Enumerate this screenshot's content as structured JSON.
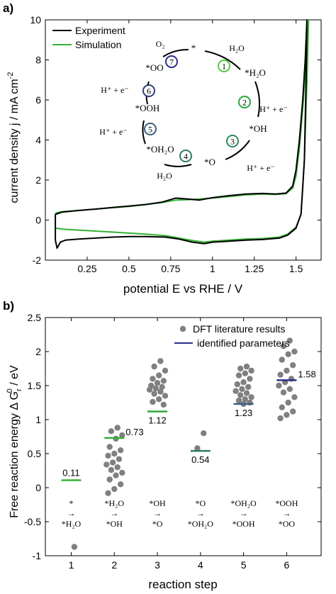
{
  "chart_data": [
    {
      "panel_label": "a)",
      "type": "line",
      "xlabel": "potential E vs RHE / V",
      "ylabel": "current density j / mA cm",
      "ylabel_sup": "-2",
      "xlim": [
        0,
        1.65
      ],
      "ylim": [
        -2,
        10
      ],
      "xticks": [
        "0.25",
        "0.5",
        "0.75",
        "1",
        "1.25",
        "1.5"
      ],
      "xtick_values": [
        0.25,
        0.5,
        0.75,
        1,
        1.25,
        1.5
      ],
      "yticks": [
        "-2",
        "0",
        "2",
        "4",
        "6",
        "8",
        "10"
      ],
      "ytick_values": [
        -2,
        0,
        2,
        4,
        6,
        8,
        10
      ],
      "grid": false,
      "legend": "top-left",
      "series": [
        {
          "name": "Experiment",
          "color": "#000000",
          "anodic": [
            [
              0.06,
              -1.0
            ],
            [
              0.06,
              0.28
            ],
            [
              0.1,
              0.4
            ],
            [
              0.2,
              0.48
            ],
            [
              0.3,
              0.55
            ],
            [
              0.4,
              0.63
            ],
            [
              0.5,
              0.7
            ],
            [
              0.6,
              0.78
            ],
            [
              0.7,
              0.9
            ],
            [
              0.78,
              1.1
            ],
            [
              0.85,
              1.05
            ],
            [
              0.92,
              1.0
            ],
            [
              1.0,
              1.12
            ],
            [
              1.1,
              1.22
            ],
            [
              1.2,
              1.3
            ],
            [
              1.3,
              1.33
            ],
            [
              1.38,
              1.3
            ],
            [
              1.44,
              1.35
            ],
            [
              1.48,
              1.7
            ],
            [
              1.5,
              2.5
            ],
            [
              1.52,
              4.0
            ],
            [
              1.54,
              6.0
            ],
            [
              1.555,
              8.0
            ],
            [
              1.565,
              10.0
            ]
          ],
          "cathodic": [
            [
              1.565,
              10.0
            ],
            [
              1.56,
              7.0
            ],
            [
              1.55,
              3.0
            ],
            [
              1.53,
              0.3
            ],
            [
              1.5,
              -0.4
            ],
            [
              1.45,
              -0.75
            ],
            [
              1.4,
              -0.9
            ],
            [
              1.3,
              -0.97
            ],
            [
              1.2,
              -1.0
            ],
            [
              1.1,
              -1.05
            ],
            [
              1.0,
              -1.1
            ],
            [
              0.95,
              -1.18
            ],
            [
              0.88,
              -1.1
            ],
            [
              0.8,
              -0.95
            ],
            [
              0.72,
              -0.85
            ],
            [
              0.6,
              -0.82
            ],
            [
              0.5,
              -0.82
            ],
            [
              0.4,
              -0.85
            ],
            [
              0.3,
              -0.9
            ],
            [
              0.2,
              -0.95
            ],
            [
              0.12,
              -1.0
            ],
            [
              0.09,
              -1.1
            ],
            [
              0.07,
              -1.4
            ],
            [
              0.06,
              -1.0
            ]
          ]
        },
        {
          "name": "Simulation",
          "color": "#33b233",
          "anodic": [
            [
              0.06,
              0.35
            ],
            [
              0.1,
              0.42
            ],
            [
              0.2,
              0.48
            ],
            [
              0.3,
              0.55
            ],
            [
              0.4,
              0.62
            ],
            [
              0.5,
              0.68
            ],
            [
              0.6,
              0.78
            ],
            [
              0.7,
              0.88
            ],
            [
              0.78,
              1.0
            ],
            [
              0.85,
              1.02
            ],
            [
              0.92,
              1.05
            ],
            [
              1.0,
              1.1
            ],
            [
              1.1,
              1.18
            ],
            [
              1.2,
              1.26
            ],
            [
              1.3,
              1.3
            ],
            [
              1.38,
              1.28
            ],
            [
              1.44,
              1.32
            ],
            [
              1.48,
              1.6
            ],
            [
              1.5,
              2.2
            ],
            [
              1.52,
              3.6
            ],
            [
              1.54,
              5.6
            ],
            [
              1.56,
              8.0
            ],
            [
              1.575,
              10.0
            ]
          ],
          "cathodic": [
            [
              1.575,
              10.0
            ],
            [
              1.565,
              7.0
            ],
            [
              1.55,
              3.0
            ],
            [
              1.53,
              0.3
            ],
            [
              1.5,
              -0.35
            ],
            [
              1.45,
              -0.7
            ],
            [
              1.4,
              -0.85
            ],
            [
              1.3,
              -0.92
            ],
            [
              1.2,
              -0.95
            ],
            [
              1.1,
              -1.0
            ],
            [
              1.0,
              -1.05
            ],
            [
              0.95,
              -1.1
            ],
            [
              0.88,
              -1.02
            ],
            [
              0.8,
              -0.9
            ],
            [
              0.72,
              -0.78
            ],
            [
              0.6,
              -0.7
            ],
            [
              0.5,
              -0.65
            ],
            [
              0.4,
              -0.6
            ],
            [
              0.3,
              -0.55
            ],
            [
              0.2,
              -0.5
            ],
            [
              0.1,
              -0.45
            ],
            [
              0.06,
              -0.4
            ]
          ]
        }
      ],
      "cycle": {
        "center_label": "*",
        "steps": [
          {
            "number": "1",
            "color": "#4fcf3a",
            "label": "H₂O",
            "label_kind": "in"
          },
          {
            "number": "2",
            "color": "#2aa83a",
            "label": "H⁺ + e⁻",
            "label_kind": "out"
          },
          {
            "number": "3",
            "color": "#2c8a5e",
            "label": "H⁺ + e⁻",
            "label_kind": "out"
          },
          {
            "number": "4",
            "color": "#2e7a66",
            "label": "H₂O",
            "label_kind": "in"
          },
          {
            "number": "5",
            "color": "#3a5f86",
            "label": "H⁺ + e⁻",
            "label_kind": "out"
          },
          {
            "number": "6",
            "color": "#2c3e7a",
            "label": "H⁺ + e⁻",
            "label_kind": "out"
          },
          {
            "number": "7",
            "color": "#2a2d86",
            "label": "O₂",
            "label_kind": "out"
          }
        ],
        "intermediates": [
          "*",
          "*H₂O",
          "*OH",
          "*O",
          "*OH₂O",
          "*OOH",
          "*OO"
        ]
      }
    },
    {
      "panel_label": "b)",
      "type": "scatter",
      "xlabel": "reaction step",
      "ylabel": "Free reaction energy Δ G",
      "ylabel_sub": "r",
      "ylabel_sup": "0",
      "ylabel_unit": " / eV",
      "xlim": [
        0.4,
        6.8
      ],
      "ylim": [
        -1,
        2.5
      ],
      "xticks": [
        "1",
        "2",
        "3",
        "4",
        "5",
        "6"
      ],
      "xtick_values": [
        1,
        2,
        3,
        4,
        5,
        6
      ],
      "yticks": [
        "-1",
        "-0.5",
        "0",
        "0.5",
        "1",
        "1.5",
        "2",
        "2.5"
      ],
      "ytick_values": [
        -1,
        -0.5,
        0,
        0.5,
        1,
        1.5,
        2,
        2.5
      ],
      "grid": false,
      "legend": "top-right",
      "legend_entries": [
        "DFT literature results",
        "identified parameters"
      ],
      "dft_color": "#808080",
      "param_color": "#2a2d86",
      "dft_points": [
        [
          1,
          -0.87
        ],
        [
          2,
          0.88
        ],
        [
          2,
          0.83
        ],
        [
          2,
          0.77
        ],
        [
          2,
          0.72
        ],
        [
          2,
          0.6
        ],
        [
          2,
          0.55
        ],
        [
          2,
          0.5
        ],
        [
          2,
          0.47
        ],
        [
          2,
          0.42
        ],
        [
          2,
          0.37
        ],
        [
          2,
          0.34
        ],
        [
          2,
          0.3
        ],
        [
          2,
          0.26
        ],
        [
          2,
          0.22
        ],
        [
          2,
          0.18
        ],
        [
          2,
          0.12
        ],
        [
          2,
          0.05
        ],
        [
          2,
          -0.02
        ],
        [
          2,
          -0.08
        ],
        [
          3,
          1.86
        ],
        [
          3,
          1.78
        ],
        [
          3,
          1.72
        ],
        [
          3,
          1.65
        ],
        [
          3,
          1.6
        ],
        [
          3,
          1.57
        ],
        [
          3,
          1.54
        ],
        [
          3,
          1.5
        ],
        [
          3,
          1.48
        ],
        [
          3,
          1.46
        ],
        [
          3,
          1.44
        ],
        [
          3,
          1.41
        ],
        [
          3,
          1.38
        ],
        [
          3,
          1.35
        ],
        [
          3,
          1.3
        ],
        [
          3,
          1.26
        ],
        [
          3,
          1.22
        ],
        [
          4,
          0.8
        ],
        [
          4,
          0.58
        ],
        [
          5,
          1.78
        ],
        [
          5,
          1.75
        ],
        [
          5,
          1.72
        ],
        [
          5,
          1.68
        ],
        [
          5,
          1.65
        ],
        [
          5,
          1.6
        ],
        [
          5,
          1.55
        ],
        [
          5,
          1.52
        ],
        [
          5,
          1.48
        ],
        [
          5,
          1.45
        ],
        [
          5,
          1.42
        ],
        [
          5,
          1.39
        ],
        [
          5,
          1.36
        ],
        [
          5,
          1.33
        ],
        [
          5,
          1.3
        ],
        [
          5,
          1.28
        ],
        [
          5,
          1.25
        ],
        [
          5,
          1.23
        ],
        [
          6,
          2.16
        ],
        [
          6,
          2.08
        ],
        [
          6,
          2.0
        ],
        [
          6,
          1.96
        ],
        [
          6,
          1.88
        ],
        [
          6,
          1.8
        ],
        [
          6,
          1.72
        ],
        [
          6,
          1.66
        ],
        [
          6,
          1.6
        ],
        [
          6,
          1.55
        ],
        [
          6,
          1.5
        ],
        [
          6,
          1.45
        ],
        [
          6,
          1.4
        ],
        [
          6,
          1.33
        ],
        [
          6,
          1.25
        ],
        [
          6,
          1.18
        ],
        [
          6,
          1.12
        ],
        [
          6,
          1.07
        ],
        [
          6,
          1.02
        ]
      ],
      "identified_parameters": [
        {
          "step": 1,
          "value": 0.11,
          "label": "0.11",
          "color": "#33b233",
          "label_pos": "above"
        },
        {
          "step": 2,
          "value": 0.73,
          "label": "0.73",
          "color": "#33b233",
          "label_pos": "right"
        },
        {
          "step": 3,
          "value": 1.12,
          "label": "1.12",
          "color": "#2aa83a",
          "label_pos": "below"
        },
        {
          "step": 4,
          "value": 0.54,
          "label": "0.54",
          "color": "#2e7a66",
          "label_pos": "below"
        },
        {
          "step": 5,
          "value": 1.23,
          "label": "1.23",
          "color": "#3a5f86",
          "label_pos": "below"
        },
        {
          "step": 6,
          "value": 1.58,
          "label": "1.58",
          "color": "#2a2d86",
          "label_pos": "right"
        }
      ],
      "step_annotations": [
        {
          "step": 1,
          "from": "*",
          "to": "*H₂O",
          "color": "#4fcf3a"
        },
        {
          "step": 2,
          "from": "*H₂O",
          "to": "*OH",
          "color": "#2aa83a"
        },
        {
          "step": 3,
          "from": "*OH",
          "to": "*O",
          "color": "#2c8a5e"
        },
        {
          "step": 4,
          "from": "*O",
          "to": "*OH₂O",
          "color": "#2e7a66"
        },
        {
          "step": 5,
          "from": "*OH₂O",
          "to": "*OOH",
          "color": "#3a5f86"
        },
        {
          "step": 6,
          "from": "*OOH",
          "to": "*OO",
          "color": "#2a2d86"
        }
      ],
      "arrow_glyph": "→"
    }
  ]
}
